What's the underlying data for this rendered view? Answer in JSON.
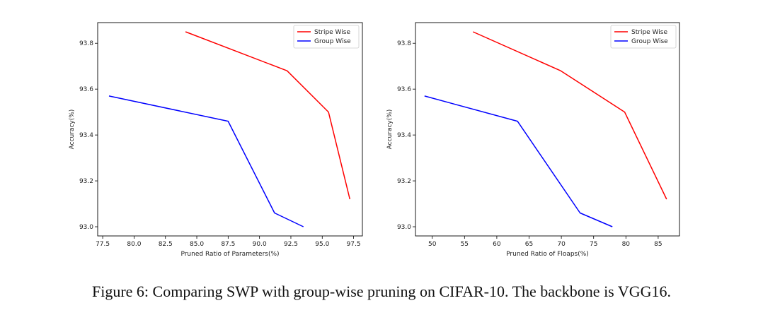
{
  "chart_data": [
    {
      "type": "line",
      "title": "",
      "xlabel": "Pruned Ratio of Parameters(%)",
      "ylabel": "Accuracy(%)",
      "xlim": [
        77.1,
        98.2
      ],
      "ylim": [
        92.96,
        93.89
      ],
      "xticks": [
        77.5,
        80.0,
        82.5,
        85.0,
        87.5,
        90.0,
        92.5,
        95.0,
        97.5
      ],
      "xtick_labels": [
        "77.5",
        "80.0",
        "82.5",
        "85.0",
        "87.5",
        "90.0",
        "92.5",
        "95.0",
        "97.5"
      ],
      "yticks": [
        93.0,
        93.2,
        93.4,
        93.6,
        93.8
      ],
      "ytick_labels": [
        "93.0",
        "93.2",
        "93.4",
        "93.6",
        "93.8"
      ],
      "legend_position": "top-right",
      "series": [
        {
          "name": "Stripe Wise",
          "color": "#ff0000",
          "x": [
            84.1,
            92.2,
            95.5,
            97.2
          ],
          "y": [
            93.85,
            93.68,
            93.5,
            93.12
          ]
        },
        {
          "name": "Group Wise",
          "color": "#0000ff",
          "x": [
            78.0,
            87.5,
            91.2,
            93.5
          ],
          "y": [
            93.57,
            93.46,
            93.06,
            93.0
          ]
        }
      ]
    },
    {
      "type": "line",
      "title": "",
      "xlabel": "Pruned Ratio of Floaps(%)",
      "ylabel": "Accuracy(%)",
      "xlim": [
        47.4,
        88.3
      ],
      "ylim": [
        92.96,
        93.89
      ],
      "xticks": [
        50,
        55,
        60,
        65,
        70,
        75,
        80,
        85
      ],
      "xtick_labels": [
        "50",
        "55",
        "60",
        "65",
        "70",
        "75",
        "80",
        "85"
      ],
      "yticks": [
        93.0,
        93.2,
        93.4,
        93.6,
        93.8
      ],
      "ytick_labels": [
        "93.0",
        "93.2",
        "93.4",
        "93.6",
        "93.8"
      ],
      "legend_position": "top-right",
      "series": [
        {
          "name": "Stripe Wise",
          "color": "#ff0000",
          "x": [
            56.3,
            69.9,
            79.8,
            86.3
          ],
          "y": [
            93.85,
            93.68,
            93.5,
            93.12
          ]
        },
        {
          "name": "Group Wise",
          "color": "#0000ff",
          "x": [
            48.8,
            63.2,
            72.9,
            77.9
          ],
          "y": [
            93.57,
            93.46,
            93.06,
            93.0
          ]
        }
      ]
    }
  ],
  "caption": "Figure 6: Comparing SWP with group-wise pruning on CIFAR-10. The backbone is VGG16."
}
